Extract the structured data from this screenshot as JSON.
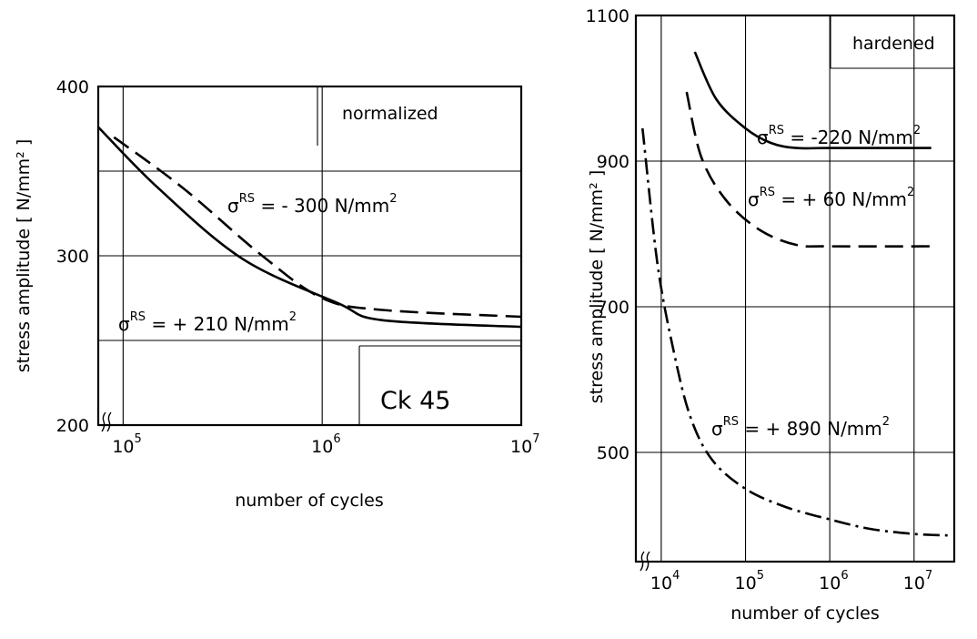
{
  "chart_data": [
    {
      "type": "line",
      "panel": "left",
      "xlabel": "number of cycles",
      "ylabel": "stress amplitude  [ N/mm² ]",
      "x_scale": "log",
      "xlim": [
        75000,
        10000000
      ],
      "ylim": [
        200,
        400
      ],
      "x_ticks": [
        {
          "value": 100000,
          "base": "10",
          "exp": "5"
        },
        {
          "value": 1000000,
          "base": "10",
          "exp": "6"
        },
        {
          "value": 10000000,
          "base": "10",
          "exp": "7"
        }
      ],
      "y_ticks": [
        {
          "value": 200,
          "label": "200"
        },
        {
          "value": 300,
          "label": "300"
        },
        {
          "value": 400,
          "label": "400"
        }
      ],
      "y_gridlines": [
        250,
        300,
        350
      ],
      "x_gridlines": [
        100000,
        1000000
      ],
      "grid": true,
      "box_label": "normalized",
      "material_label": "Ck 45",
      "series": [
        {
          "name": "σRS = - 300 N/mm²",
          "ann_base": "σ",
          "ann_sup": "RS",
          "ann_rest": " = - 300 N/mm",
          "ann_sup2": "2",
          "style": "solid",
          "points": [
            [
              75000,
              376
            ],
            [
              150000,
              340
            ],
            [
              400000,
              298
            ],
            [
              1200000,
              272
            ],
            [
              2000000,
              262
            ],
            [
              10000000,
              258
            ]
          ]
        },
        {
          "name": "σRS = + 210 N/mm²",
          "ann_base": "σ",
          "ann_sup": "RS",
          "ann_rest": " = + 210 N/mm",
          "ann_sup2": "2",
          "style": "long-dash",
          "points": [
            [
              90000,
              370
            ],
            [
              200000,
              340
            ],
            [
              500000,
              300
            ],
            [
              1000000,
              275
            ],
            [
              2000000,
              268
            ],
            [
              10000000,
              264
            ]
          ]
        }
      ]
    },
    {
      "type": "line",
      "panel": "right",
      "xlabel": "number of cycles",
      "ylabel": "stress amplitude  [ N/mm² ]",
      "x_scale": "log",
      "xlim": [
        5000,
        30000000
      ],
      "ylim": [
        350,
        1100
      ],
      "x_ticks": [
        {
          "value": 10000,
          "base": "10",
          "exp": "4"
        },
        {
          "value": 100000,
          "base": "10",
          "exp": "5"
        },
        {
          "value": 1000000,
          "base": "10",
          "exp": "6"
        },
        {
          "value": 10000000,
          "base": "10",
          "exp": "7"
        }
      ],
      "y_ticks": [
        {
          "value": 500,
          "label": "500"
        },
        {
          "value": 700,
          "label": "700"
        },
        {
          "value": 900,
          "label": "900"
        },
        {
          "value": 1100,
          "label": "1100"
        }
      ],
      "y_gridlines": [
        500,
        700,
        900
      ],
      "x_gridlines": [
        10000,
        100000,
        1000000,
        10000000
      ],
      "grid": true,
      "box_label": "hardened",
      "series": [
        {
          "name": "σRS = -220 N/mm²",
          "ann_base": "σ",
          "ann_sup": "RS",
          "ann_rest": " = -220 N/mm",
          "ann_sup2": "2",
          "style": "solid",
          "points": [
            [
              25000,
              1050
            ],
            [
              45000,
              985
            ],
            [
              100000,
              945
            ],
            [
              200000,
              925
            ],
            [
              400000,
              918
            ],
            [
              1000000,
              918
            ],
            [
              16000000,
              918
            ]
          ]
        },
        {
          "name": "σRS = + 60 N/mm²",
          "ann_base": "σ",
          "ann_sup": "RS",
          "ann_rest": " = + 60 N/mm",
          "ann_sup2": "2",
          "style": "long-dash",
          "points": [
            [
              20000,
              995
            ],
            [
              30000,
              905
            ],
            [
              60000,
              845
            ],
            [
              150000,
              805
            ],
            [
              400000,
              785
            ],
            [
              1000000,
              783
            ],
            [
              16000000,
              783
            ]
          ]
        },
        {
          "name": "σRS = + 890 N/mm²",
          "ann_base": "σ",
          "ann_sup": "RS",
          "ann_rest": " = + 890 N/mm",
          "ann_sup2": "2",
          "style": "dash-dot",
          "points": [
            [
              6000,
              945
            ],
            [
              9000,
              760
            ],
            [
              14000,
              640
            ],
            [
              22000,
              550
            ],
            [
              40000,
              490
            ],
            [
              100000,
              450
            ],
            [
              300000,
              425
            ],
            [
              1000000,
              408
            ],
            [
              3000000,
              395
            ],
            [
              10000000,
              388
            ],
            [
              25000000,
              386
            ]
          ]
        }
      ]
    }
  ]
}
